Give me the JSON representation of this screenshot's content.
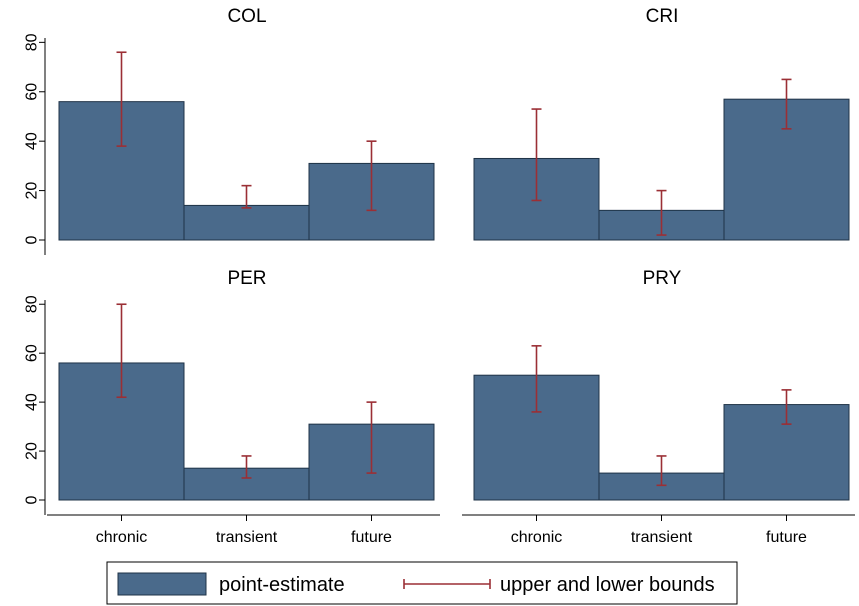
{
  "chart_data": {
    "type": "bar",
    "categories": [
      "chronic",
      "transient",
      "future"
    ],
    "ylim": [
      0,
      85
    ],
    "yticks": [
      0,
      20,
      40,
      60,
      80
    ],
    "grid": false,
    "legend_position": "bottom",
    "colors": {
      "bar_fill": "#4a6a8b",
      "bar_edge": "#1f3347",
      "error_bar": "#9b2f35"
    },
    "legend": [
      {
        "label": "point-estimate",
        "kind": "bar",
        "icon": "bar-swatch"
      },
      {
        "label": "upper and lower bounds",
        "kind": "errorbar",
        "icon": "range-cap-line"
      }
    ],
    "panels": [
      {
        "title": "COL",
        "values": [
          56,
          14,
          31
        ],
        "lower": [
          38,
          13,
          12
        ],
        "upper": [
          76,
          22,
          40
        ]
      },
      {
        "title": "CRI",
        "values": [
          33,
          12,
          57
        ],
        "lower": [
          16,
          2,
          45
        ],
        "upper": [
          53,
          20,
          65
        ]
      },
      {
        "title": "PER",
        "values": [
          56,
          13,
          31
        ],
        "lower": [
          42,
          9,
          11
        ],
        "upper": [
          80,
          18,
          40
        ]
      },
      {
        "title": "PRY",
        "values": [
          51,
          11,
          39
        ],
        "lower": [
          36,
          6,
          31
        ],
        "upper": [
          63,
          18,
          45
        ]
      }
    ]
  }
}
